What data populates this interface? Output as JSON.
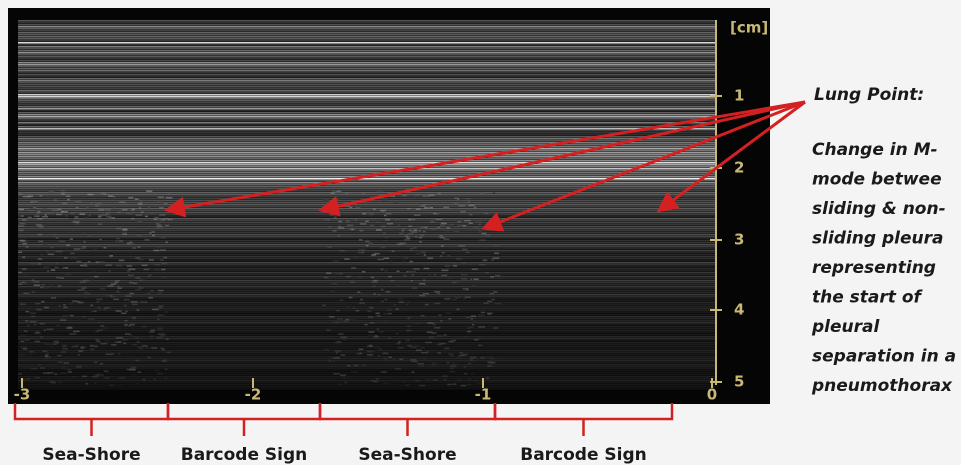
{
  "axis": {
    "unit": "[cm]",
    "depth_labels": [
      "1",
      "2",
      "3",
      "4",
      "5"
    ],
    "time_labels": [
      "-3",
      "-2",
      "-1",
      "0"
    ]
  },
  "annotation": {
    "title": "Lung Point:",
    "lines": [
      "Change in M-",
      "mode betwee",
      "sliding & non-",
      "sliding pleura",
      "representing",
      "the start of",
      "pleural",
      "separation in a",
      "pneumothorax"
    ]
  },
  "segments": [
    "Sea-Shore",
    "Barcode Sign",
    "Sea-Shore",
    "Barcode Sign"
  ]
}
